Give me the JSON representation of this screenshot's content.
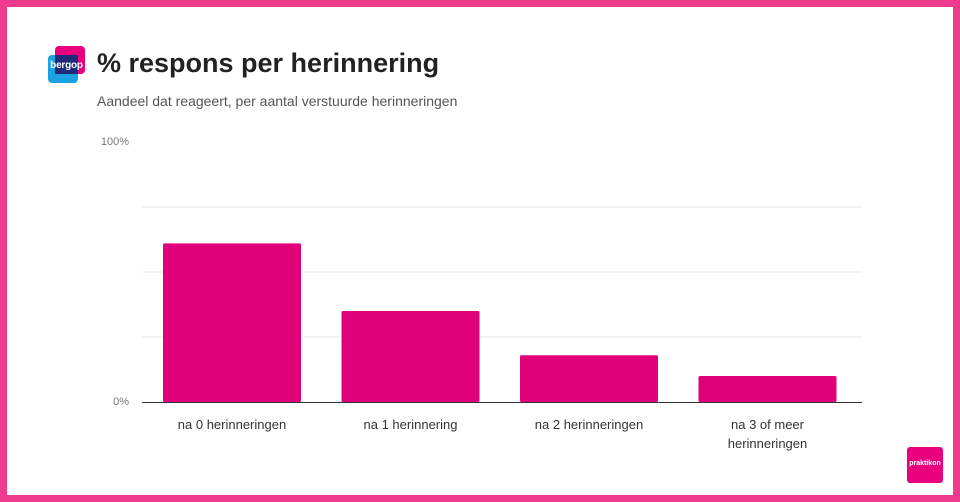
{
  "header": {
    "title": "% respons per herinnering",
    "subtitle": "Aandeel dat reageert, per aantal verstuurde herinneringen"
  },
  "logo": {
    "text": "bergop"
  },
  "badge": {
    "text": "praktikon"
  },
  "colors": {
    "frame": "#ee3b8e",
    "bar": "#e0007a",
    "grid": "#e8e8e8",
    "axis": "#333333"
  },
  "chart_data": {
    "type": "bar",
    "categories": [
      "na 0 herinneringen",
      "na 1 herinnering",
      "na 2 herinneringen",
      "na 3 of meer herinneringen"
    ],
    "values": [
      61,
      35,
      18,
      10
    ],
    "ylim": [
      0,
      100
    ],
    "y_ticks_labeled": [
      "0%",
      "100%"
    ],
    "gridlines": [
      25,
      50,
      75
    ],
    "grid": true,
    "xlabel": "",
    "ylabel": ""
  }
}
